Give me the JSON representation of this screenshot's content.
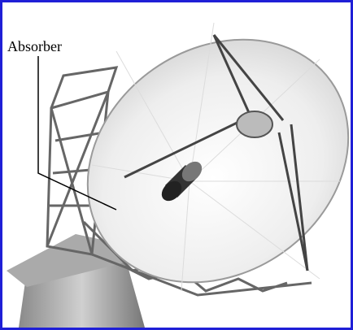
{
  "labels": [
    {
      "text": "Absorber"
    }
  ]
}
